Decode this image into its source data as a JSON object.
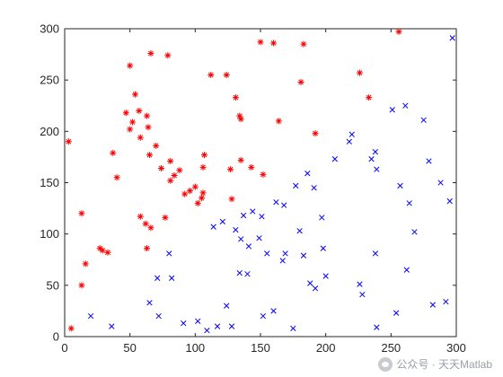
{
  "chart_data": {
    "type": "scatter",
    "title": "",
    "xlabel": "",
    "ylabel": "",
    "xlim": [
      0,
      300
    ],
    "ylim": [
      0,
      300
    ],
    "xticks": [
      0,
      50,
      100,
      150,
      200,
      250,
      300
    ],
    "yticks": [
      0,
      50,
      100,
      150,
      200,
      250,
      300
    ],
    "grid": false,
    "series": [
      {
        "marker": "asterisk",
        "color": "#ff0000",
        "points": [
          [
            3,
            190
          ],
          [
            5,
            8
          ],
          [
            13,
            120
          ],
          [
            13,
            50
          ],
          [
            16,
            71
          ],
          [
            27,
            86
          ],
          [
            29,
            84
          ],
          [
            33,
            82
          ],
          [
            37,
            179
          ],
          [
            40,
            155
          ],
          [
            47,
            218
          ],
          [
            50,
            264
          ],
          [
            50,
            202
          ],
          [
            52,
            209
          ],
          [
            54,
            236
          ],
          [
            57,
            220
          ],
          [
            58,
            194
          ],
          [
            58,
            117
          ],
          [
            62,
            110
          ],
          [
            63,
            215
          ],
          [
            63,
            86
          ],
          [
            64,
            204
          ],
          [
            65,
            177
          ],
          [
            66,
            276
          ],
          [
            66,
            106
          ],
          [
            70,
            186
          ],
          [
            74,
            164
          ],
          [
            77,
            116
          ],
          [
            79,
            274
          ],
          [
            81,
            171
          ],
          [
            81,
            152
          ],
          [
            84,
            157
          ],
          [
            88,
            162
          ],
          [
            92,
            139
          ],
          [
            96,
            142
          ],
          [
            100,
            146
          ],
          [
            102,
            130
          ],
          [
            105,
            135
          ],
          [
            106,
            165
          ],
          [
            106,
            140
          ],
          [
            107,
            177
          ],
          [
            112,
            255
          ],
          [
            124,
            255
          ],
          [
            127,
            163
          ],
          [
            128,
            134
          ],
          [
            131,
            233
          ],
          [
            134,
            215
          ],
          [
            135,
            212
          ],
          [
            135,
            172
          ],
          [
            143,
            165
          ],
          [
            150,
            287
          ],
          [
            152,
            158
          ],
          [
            160,
            286
          ],
          [
            164,
            210
          ],
          [
            181,
            248
          ],
          [
            183,
            285
          ],
          [
            192,
            198
          ],
          [
            226,
            257
          ],
          [
            233,
            233
          ],
          [
            256,
            297
          ]
        ]
      },
      {
        "marker": "x",
        "color": "#0000ff",
        "points": [
          [
            20,
            20
          ],
          [
            36,
            10
          ],
          [
            65,
            33
          ],
          [
            71,
            57
          ],
          [
            72,
            20
          ],
          [
            80,
            81
          ],
          [
            82,
            57
          ],
          [
            91,
            13
          ],
          [
            102,
            15
          ],
          [
            109,
            6
          ],
          [
            114,
            107
          ],
          [
            117,
            10
          ],
          [
            121,
            112
          ],
          [
            124,
            30
          ],
          [
            128,
            10
          ],
          [
            131,
            104
          ],
          [
            134,
            62
          ],
          [
            135,
            95
          ],
          [
            137,
            118
          ],
          [
            140,
            61
          ],
          [
            141,
            88
          ],
          [
            144,
            122
          ],
          [
            149,
            96
          ],
          [
            151,
            117
          ],
          [
            152,
            20
          ],
          [
            155,
            81
          ],
          [
            160,
            25
          ],
          [
            162,
            131
          ],
          [
            167,
            74
          ],
          [
            168,
            128
          ],
          [
            169,
            81
          ],
          [
            175,
            8
          ],
          [
            177,
            147
          ],
          [
            180,
            103
          ],
          [
            183,
            79
          ],
          [
            186,
            159
          ],
          [
            188,
            52
          ],
          [
            191,
            145
          ],
          [
            192,
            47
          ],
          [
            197,
            116
          ],
          [
            198,
            86
          ],
          [
            200,
            59
          ],
          [
            207,
            173
          ],
          [
            218,
            190
          ],
          [
            220,
            197
          ],
          [
            226,
            51
          ],
          [
            228,
            41
          ],
          [
            235,
            173
          ],
          [
            238,
            180
          ],
          [
            238,
            81
          ],
          [
            239,
            163
          ],
          [
            239,
            9
          ],
          [
            251,
            221
          ],
          [
            254,
            23
          ],
          [
            257,
            147
          ],
          [
            261,
            225
          ],
          [
            262,
            65
          ],
          [
            264,
            130
          ],
          [
            268,
            102
          ],
          [
            275,
            211
          ],
          [
            279,
            171
          ],
          [
            282,
            31
          ],
          [
            288,
            150
          ],
          [
            292,
            34
          ],
          [
            295,
            132
          ],
          [
            297,
            291
          ]
        ]
      }
    ]
  },
  "watermark": {
    "icon": "wechat-icon",
    "text": "公众号 · 天天Matlab"
  }
}
